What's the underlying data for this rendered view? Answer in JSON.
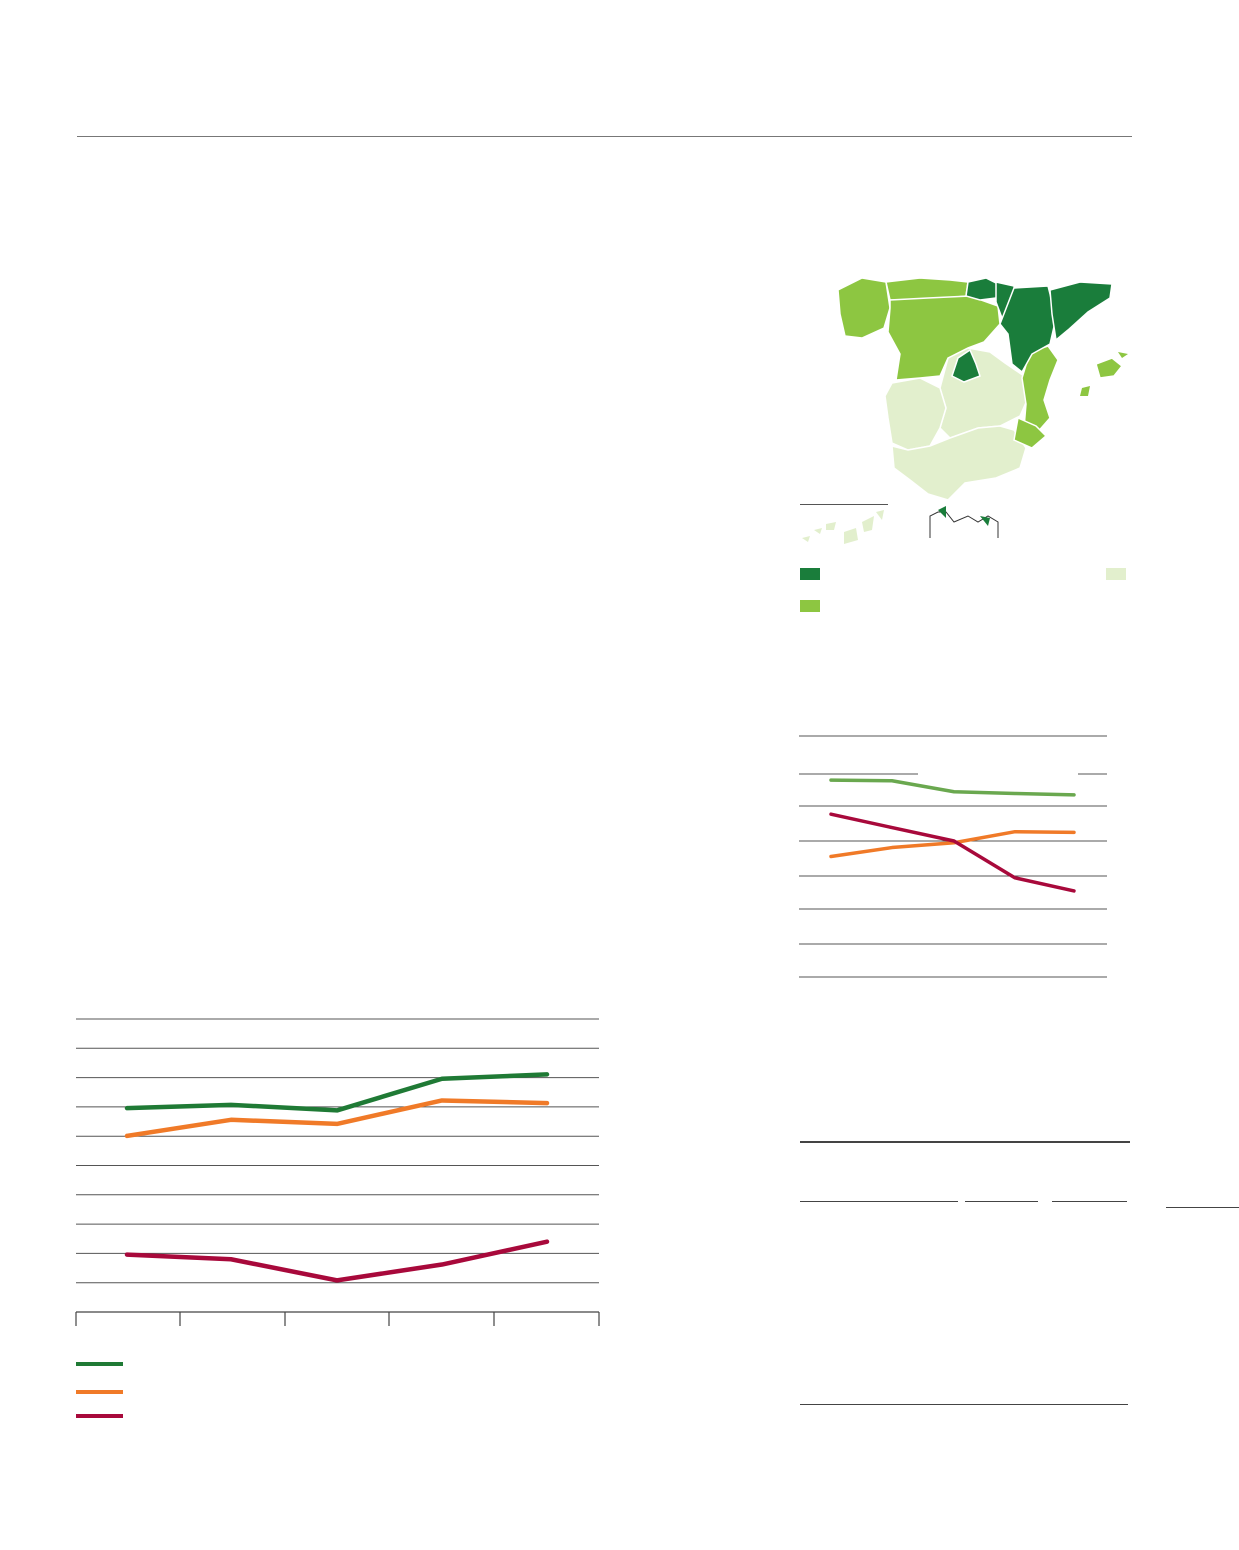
{
  "colors": {
    "dark_green": "#1a7d3b",
    "mid_green": "#8dc641",
    "pale_green": "#e2efcd",
    "line_green": "#1f7a35",
    "line_green_light": "#6aa84f",
    "orange": "#f07a28",
    "crimson": "#a8093b",
    "rule_gray": "#555555"
  },
  "icons": {
    "map": "spain-regions-map",
    "inset": "canary-islands-inset",
    "inset2": "ceuta-melilla-inset"
  },
  "map_legend": [
    {
      "color": "#1a7d3b"
    },
    {
      "color": "#8dc641"
    },
    {
      "color": "#e2efcd"
    }
  ],
  "chart_data": [
    {
      "type": "line",
      "x": [
        1,
        2,
        3,
        4,
        5
      ],
      "ylim": [
        0,
        10
      ],
      "grid": true,
      "series": [
        {
          "color": "#1f7a35",
          "values": [
            6.96,
            7.07,
            6.88,
            7.96,
            8.11
          ]
        },
        {
          "color": "#f07a28",
          "values": [
            6.01,
            6.56,
            6.42,
            7.22,
            7.13
          ]
        },
        {
          "color": "#a8093b",
          "values": [
            1.96,
            1.8,
            1.08,
            1.62,
            2.4
          ]
        }
      ]
    },
    {
      "type": "line",
      "x": [
        1,
        2,
        3,
        4,
        5
      ],
      "ylim": [
        0,
        7
      ],
      "grid": true,
      "series": [
        {
          "color": "#6aa84f",
          "values": [
            5.72,
            5.7,
            5.38,
            5.33,
            5.29
          ]
        },
        {
          "color": "#f07a28",
          "values": [
            3.5,
            3.76,
            3.9,
            4.22,
            4.2
          ]
        },
        {
          "color": "#a8093b",
          "values": [
            4.73,
            4.34,
            3.95,
            2.88,
            2.5
          ]
        }
      ]
    }
  ]
}
